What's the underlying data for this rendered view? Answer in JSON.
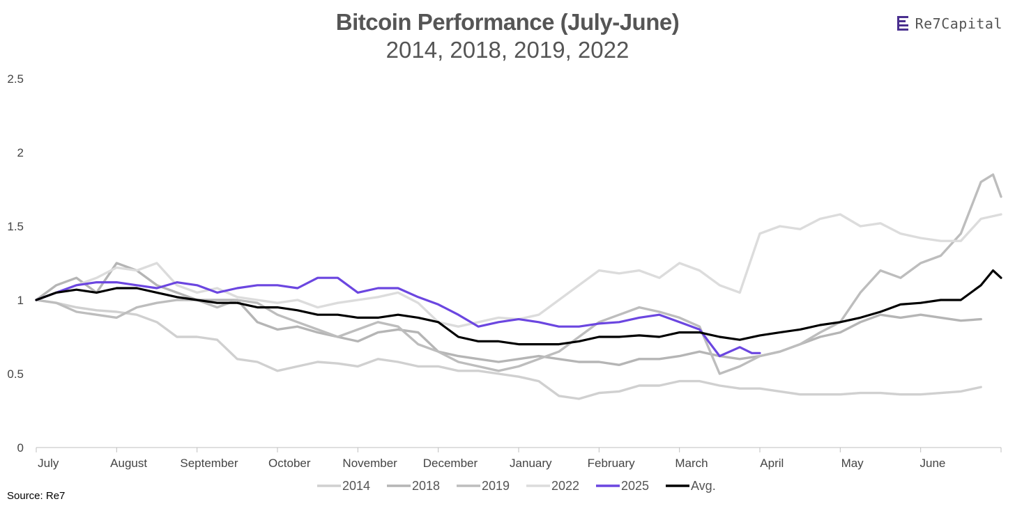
{
  "brand": {
    "name": "Re7Capital",
    "logo_icon": "re7-logo-icon"
  },
  "source": "Source: Re7",
  "chart_data": {
    "type": "line",
    "title": "Bitcoin Performance (July-June)",
    "subtitle": "2014, 2018, 2019, 2022",
    "xlabel": "",
    "ylabel": "",
    "ylim": [
      0,
      2.5
    ],
    "yticks": [
      "0",
      "0.5",
      "1",
      "1.5",
      "2",
      "2.5"
    ],
    "ytick_values": [
      0,
      0.5,
      1,
      1.5,
      2,
      2.5
    ],
    "xlim": [
      0,
      12
    ],
    "month_labels": [
      "July",
      "August",
      "September",
      "October",
      "November",
      "December",
      "January",
      "February",
      "March",
      "April",
      "May",
      "June"
    ],
    "grid": false,
    "legend_position": "bottom",
    "series": [
      {
        "name": "2014",
        "color": "#d0d0d0",
        "x": [
          0,
          0.25,
          0.5,
          0.75,
          1,
          1.25,
          1.5,
          1.75,
          2,
          2.25,
          2.5,
          2.75,
          3,
          3.25,
          3.5,
          3.75,
          4,
          4.25,
          4.5,
          4.75,
          5,
          5.25,
          5.5,
          5.75,
          6,
          6.25,
          6.5,
          6.75,
          7,
          7.25,
          7.5,
          7.75,
          8,
          8.25,
          8.5,
          8.75,
          9,
          9.25,
          9.5,
          9.75,
          10,
          10.25,
          10.5,
          10.75,
          11,
          11.25,
          11.5,
          11.75
        ],
        "y": [
          1.0,
          0.98,
          0.95,
          0.93,
          0.92,
          0.9,
          0.85,
          0.75,
          0.75,
          0.73,
          0.6,
          0.58,
          0.52,
          0.55,
          0.58,
          0.57,
          0.55,
          0.6,
          0.58,
          0.55,
          0.55,
          0.52,
          0.52,
          0.5,
          0.48,
          0.45,
          0.35,
          0.33,
          0.37,
          0.38,
          0.42,
          0.42,
          0.45,
          0.45,
          0.42,
          0.4,
          0.4,
          0.38,
          0.36,
          0.36,
          0.36,
          0.37,
          0.37,
          0.36,
          0.36,
          0.37,
          0.38,
          0.41
        ]
      },
      {
        "name": "2018",
        "color": "#b5b5b5",
        "x": [
          0,
          0.25,
          0.5,
          0.75,
          1,
          1.25,
          1.5,
          1.75,
          2,
          2.25,
          2.5,
          2.75,
          3,
          3.25,
          3.5,
          3.75,
          4,
          4.25,
          4.5,
          4.75,
          5,
          5.25,
          5.5,
          5.75,
          6,
          6.25,
          6.5,
          6.75,
          7,
          7.25,
          7.5,
          7.75,
          8,
          8.25,
          8.5,
          8.75,
          9,
          9.25,
          9.5,
          9.75,
          10,
          10.25,
          10.5,
          10.75,
          11,
          11.25,
          11.5,
          11.75
        ],
        "y": [
          1.0,
          1.1,
          1.15,
          1.05,
          1.25,
          1.2,
          1.1,
          1.05,
          1.0,
          1.0,
          1.0,
          0.85,
          0.8,
          0.82,
          0.78,
          0.75,
          0.72,
          0.78,
          0.8,
          0.78,
          0.65,
          0.62,
          0.6,
          0.58,
          0.6,
          0.62,
          0.6,
          0.58,
          0.58,
          0.56,
          0.6,
          0.6,
          0.62,
          0.65,
          0.62,
          0.6,
          0.62,
          0.65,
          0.7,
          0.75,
          0.78,
          0.85,
          0.9,
          0.88,
          0.9,
          0.88,
          0.86,
          0.87
        ]
      },
      {
        "name": "2019",
        "color": "#bdbdbd",
        "x": [
          0,
          0.25,
          0.5,
          0.75,
          1,
          1.25,
          1.5,
          1.75,
          2,
          2.25,
          2.5,
          2.75,
          3,
          3.25,
          3.5,
          3.75,
          4,
          4.25,
          4.5,
          4.75,
          5,
          5.25,
          5.5,
          5.75,
          6,
          6.25,
          6.5,
          6.75,
          7,
          7.25,
          7.5,
          7.75,
          8,
          8.25,
          8.5,
          8.75,
          9,
          9.25,
          9.5,
          9.75,
          10,
          10.25,
          10.5,
          10.75,
          11,
          11.25,
          11.5,
          11.75,
          11.9,
          12
        ],
        "y": [
          1.0,
          0.98,
          0.92,
          0.9,
          0.88,
          0.95,
          0.98,
          1.0,
          1.0,
          0.95,
          1.0,
          0.98,
          0.9,
          0.85,
          0.8,
          0.75,
          0.8,
          0.85,
          0.82,
          0.7,
          0.65,
          0.58,
          0.55,
          0.52,
          0.55,
          0.6,
          0.65,
          0.75,
          0.85,
          0.9,
          0.95,
          0.92,
          0.88,
          0.82,
          0.5,
          0.55,
          0.62,
          0.65,
          0.7,
          0.78,
          0.85,
          1.05,
          1.2,
          1.15,
          1.25,
          1.3,
          1.45,
          1.8,
          1.85,
          1.7
        ]
      },
      {
        "name": "2022",
        "color": "#dcdcdc",
        "x": [
          0,
          0.25,
          0.5,
          0.75,
          1,
          1.25,
          1.5,
          1.75,
          2,
          2.25,
          2.5,
          2.75,
          3,
          3.25,
          3.5,
          3.75,
          4,
          4.25,
          4.5,
          4.75,
          5,
          5.25,
          5.5,
          5.75,
          6,
          6.25,
          6.5,
          6.75,
          7,
          7.25,
          7.5,
          7.75,
          8,
          8.25,
          8.5,
          8.75,
          9,
          9.25,
          9.5,
          9.75,
          10,
          10.25,
          10.5,
          10.75,
          11,
          11.25,
          11.5,
          11.75,
          12
        ],
        "y": [
          1.0,
          1.05,
          1.1,
          1.15,
          1.22,
          1.2,
          1.25,
          1.1,
          1.05,
          1.08,
          1.02,
          1.0,
          0.98,
          1.0,
          0.95,
          0.98,
          1.0,
          1.02,
          1.05,
          0.98,
          0.85,
          0.82,
          0.85,
          0.88,
          0.87,
          0.9,
          1.0,
          1.1,
          1.2,
          1.18,
          1.2,
          1.15,
          1.25,
          1.2,
          1.1,
          1.05,
          1.45,
          1.5,
          1.48,
          1.55,
          1.58,
          1.5,
          1.52,
          1.45,
          1.42,
          1.4,
          1.4,
          1.55,
          1.58
        ]
      },
      {
        "name": "2025",
        "color": "#6b46e0",
        "x": [
          0,
          0.25,
          0.5,
          0.75,
          1,
          1.25,
          1.5,
          1.75,
          2,
          2.25,
          2.5,
          2.75,
          3,
          3.25,
          3.5,
          3.75,
          4,
          4.25,
          4.5,
          4.75,
          5,
          5.25,
          5.5,
          5.75,
          6,
          6.25,
          6.5,
          6.75,
          7,
          7.25,
          7.5,
          7.75,
          8,
          8.25,
          8.5,
          8.75,
          8.9,
          9
        ],
        "y": [
          1.0,
          1.05,
          1.1,
          1.12,
          1.12,
          1.1,
          1.08,
          1.12,
          1.1,
          1.05,
          1.08,
          1.1,
          1.1,
          1.08,
          1.15,
          1.15,
          1.05,
          1.08,
          1.08,
          1.02,
          0.97,
          0.9,
          0.82,
          0.85,
          0.87,
          0.85,
          0.82,
          0.82,
          0.84,
          0.85,
          0.88,
          0.9,
          0.85,
          0.8,
          0.62,
          0.68,
          0.64,
          0.64
        ]
      },
      {
        "name": "Avg.",
        "color": "#000000",
        "x": [
          0,
          0.25,
          0.5,
          0.75,
          1,
          1.25,
          1.5,
          1.75,
          2,
          2.25,
          2.5,
          2.75,
          3,
          3.25,
          3.5,
          3.75,
          4,
          4.25,
          4.5,
          4.75,
          5,
          5.25,
          5.5,
          5.75,
          6,
          6.25,
          6.5,
          6.75,
          7,
          7.25,
          7.5,
          7.75,
          8,
          8.25,
          8.5,
          8.75,
          9,
          9.25,
          9.5,
          9.75,
          10,
          10.25,
          10.5,
          10.75,
          11,
          11.25,
          11.5,
          11.75,
          11.9,
          12
        ],
        "y": [
          1.0,
          1.05,
          1.07,
          1.05,
          1.08,
          1.08,
          1.05,
          1.02,
          1.0,
          0.98,
          0.98,
          0.95,
          0.95,
          0.93,
          0.9,
          0.9,
          0.88,
          0.88,
          0.9,
          0.88,
          0.85,
          0.75,
          0.72,
          0.72,
          0.7,
          0.7,
          0.7,
          0.72,
          0.75,
          0.75,
          0.76,
          0.75,
          0.78,
          0.78,
          0.75,
          0.73,
          0.76,
          0.78,
          0.8,
          0.83,
          0.85,
          0.88,
          0.92,
          0.97,
          0.98,
          1.0,
          1.0,
          1.1,
          1.2,
          1.15
        ]
      }
    ]
  }
}
